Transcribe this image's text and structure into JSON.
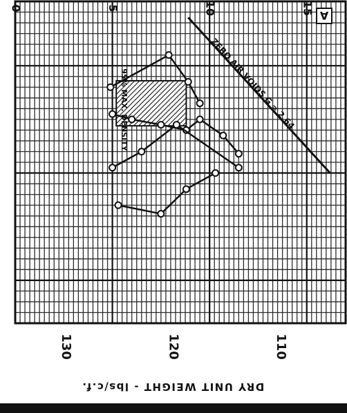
{
  "panel_letter": "A",
  "colors": {
    "ink": "#111111",
    "paper": "#ffffff",
    "grid_fine": "#2a2a2a"
  },
  "chart_data": {
    "type": "line",
    "orientation": "rotated 90 degrees clockwise (moisture axis along top, unit weight axis along bottom)",
    "title": "",
    "xlabel": "",
    "ylabel": "DRY UNIT WEIGHT - lbs/c.f.",
    "x_ticks": [
      "0",
      "5",
      "10",
      "15"
    ],
    "y_ticks": [
      "130",
      "120",
      "110"
    ],
    "xlim": [
      0,
      17
    ],
    "ylim": [
      106,
      136
    ],
    "grid": true,
    "zero_air_voids_line": {
      "label": "ZERO AIR VOIDS G = 2.64",
      "x": [
        8.9,
        16.2
      ],
      "y": [
        134.5,
        120.0
      ]
    },
    "series": [
      {
        "markers": "open-circle",
        "x": [
          5.0,
          6.0,
          7.5,
          8.8,
          9.5,
          10.7,
          11.5
        ],
        "y": [
          125.5,
          125.0,
          124.5,
          124.0,
          125.0,
          123.5,
          121.8
        ]
      },
      {
        "markers": "open-circle",
        "x": [
          4.9,
          7.9,
          8.9,
          9.5
        ],
        "y": [
          128.0,
          131.0,
          128.5,
          126.5
        ]
      },
      {
        "markers": "open-circle",
        "x": [
          5.0,
          6.5,
          8.3,
          11.5
        ],
        "y": [
          120.5,
          122.0,
          124.5,
          120.5
        ]
      },
      {
        "markers": "open-circle",
        "x": [
          5.3,
          7.5,
          8.8,
          10.3
        ],
        "y": [
          117.0,
          116.2,
          118.5,
          120.0
        ]
      }
    ],
    "shaded_region": {
      "label": "95% MAX. DENSITY",
      "x_range": [
        5.2,
        8.8
      ],
      "y_range": [
        124.4,
        128.6
      ]
    }
  }
}
